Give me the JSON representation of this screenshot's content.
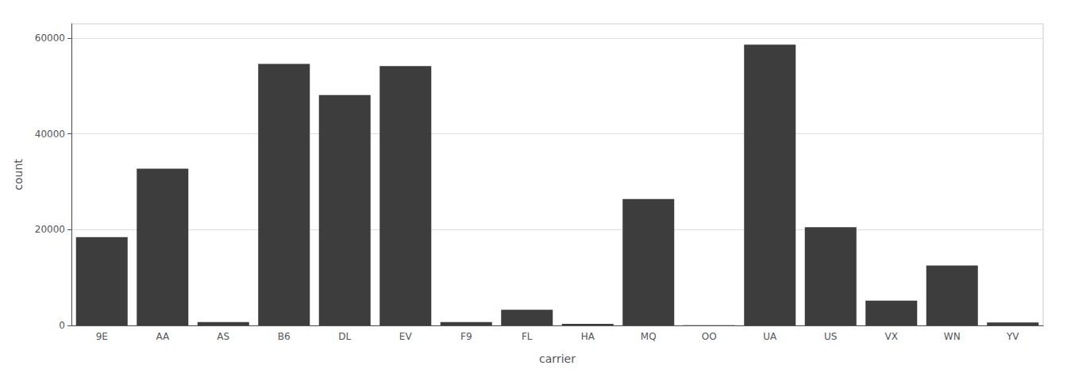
{
  "chart_data": {
    "type": "bar",
    "categories": [
      "9E",
      "AA",
      "AS",
      "B6",
      "DL",
      "EV",
      "F9",
      "FL",
      "HA",
      "MQ",
      "OO",
      "UA",
      "US",
      "VX",
      "WN",
      "YV"
    ],
    "values": [
      18460,
      32729,
      714,
      54635,
      48110,
      54173,
      685,
      3260,
      342,
      26397,
      32,
      58665,
      20536,
      5162,
      12522,
      601
    ],
    "color": "#3d3d3d",
    "xlabel": "carrier",
    "ylabel": "count",
    "ylim": [
      0,
      63000
    ],
    "yticks": [
      0,
      20000,
      40000,
      60000
    ],
    "grid": true
  }
}
